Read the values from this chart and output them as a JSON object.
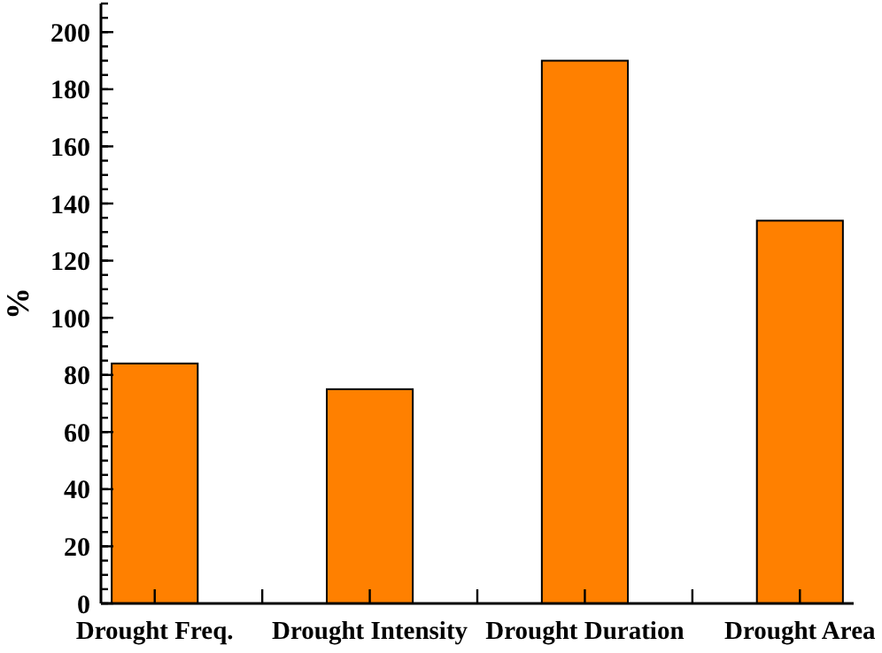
{
  "chart_data": {
    "type": "bar",
    "ylabel": "%",
    "categories": [
      "Drought Freq.",
      "Drought Intensity",
      "Drought Duration",
      "Drought Area"
    ],
    "values": [
      84,
      75,
      190,
      134
    ],
    "color": "#ff8000",
    "ylim": [
      0,
      210
    ],
    "yticks": [
      0,
      20,
      40,
      60,
      80,
      100,
      120,
      140,
      160,
      180,
      200
    ],
    "grid": false
  }
}
